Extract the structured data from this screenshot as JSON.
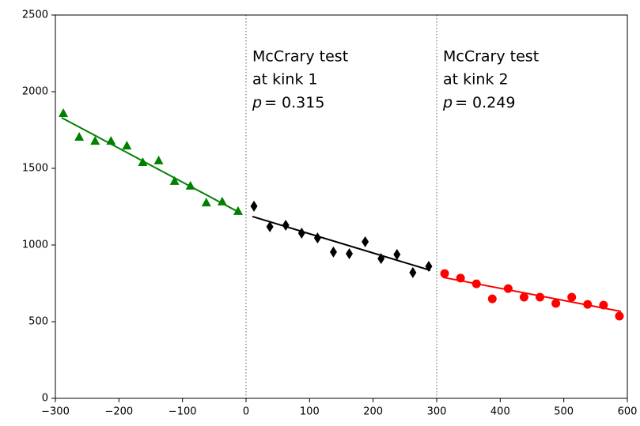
{
  "chart_data": {
    "type": "scatter",
    "xlim": [
      -300,
      600
    ],
    "ylim": [
      0,
      2500
    ],
    "xticks": [
      {
        "value": -300,
        "label": "−300"
      },
      {
        "value": -200,
        "label": "−200"
      },
      {
        "value": -100,
        "label": "−100"
      },
      0,
      100,
      200,
      300,
      400,
      500,
      600
    ],
    "yticks": [
      0,
      500,
      1000,
      1500,
      2000,
      2500
    ],
    "kinks": [
      0,
      300
    ],
    "annotations": [
      {
        "lines": [
          "McCrary test",
          "at kink 1"
        ],
        "p_symbol": "p",
        "p_text": "= 0.315"
      },
      {
        "lines": [
          "McCrary test",
          "at kink 2"
        ],
        "p_symbol": "p",
        "p_text": "= 0.249"
      }
    ],
    "series": [
      {
        "color": "#008000",
        "marker": "triangle",
        "x": [
          -287.5,
          -262.5,
          -237.5,
          -212.5,
          -187.5,
          -162.5,
          -137.5,
          -112.5,
          -87.5,
          -62.5,
          -37.5,
          -12.5
        ],
        "values": [
          1861,
          1706,
          1680,
          1680,
          1649,
          1541,
          1552,
          1418,
          1387,
          1278,
          1284,
          1222
        ],
        "fit": {
          "x": [
            -290,
            -10
          ],
          "y": [
            1830,
            1211
          ]
        }
      },
      {
        "color": "#000000",
        "marker": "diamond",
        "x": [
          12.5,
          37.5,
          62.5,
          87.5,
          112.5,
          137.5,
          162.5,
          187.5,
          212.5,
          237.5,
          262.5,
          287.5
        ],
        "values": [
          1253,
          1119,
          1129,
          1077,
          1046,
          954,
          943,
          1021,
          912,
          938,
          820,
          861
        ],
        "fit": {
          "x": [
            10,
            290
          ],
          "y": [
            1186,
            835
          ]
        }
      },
      {
        "color": "#ff0000",
        "marker": "circle",
        "x": [
          312.5,
          337.5,
          362.5,
          387.5,
          412.5,
          437.5,
          462.5,
          487.5,
          512.5,
          537.5,
          562.5,
          587.5
        ],
        "values": [
          814,
          784,
          747,
          649,
          716,
          660,
          660,
          619,
          660,
          613,
          608,
          536
        ],
        "fit": {
          "x": [
            310,
            590
          ],
          "y": [
            789,
            567
          ]
        }
      }
    ]
  }
}
